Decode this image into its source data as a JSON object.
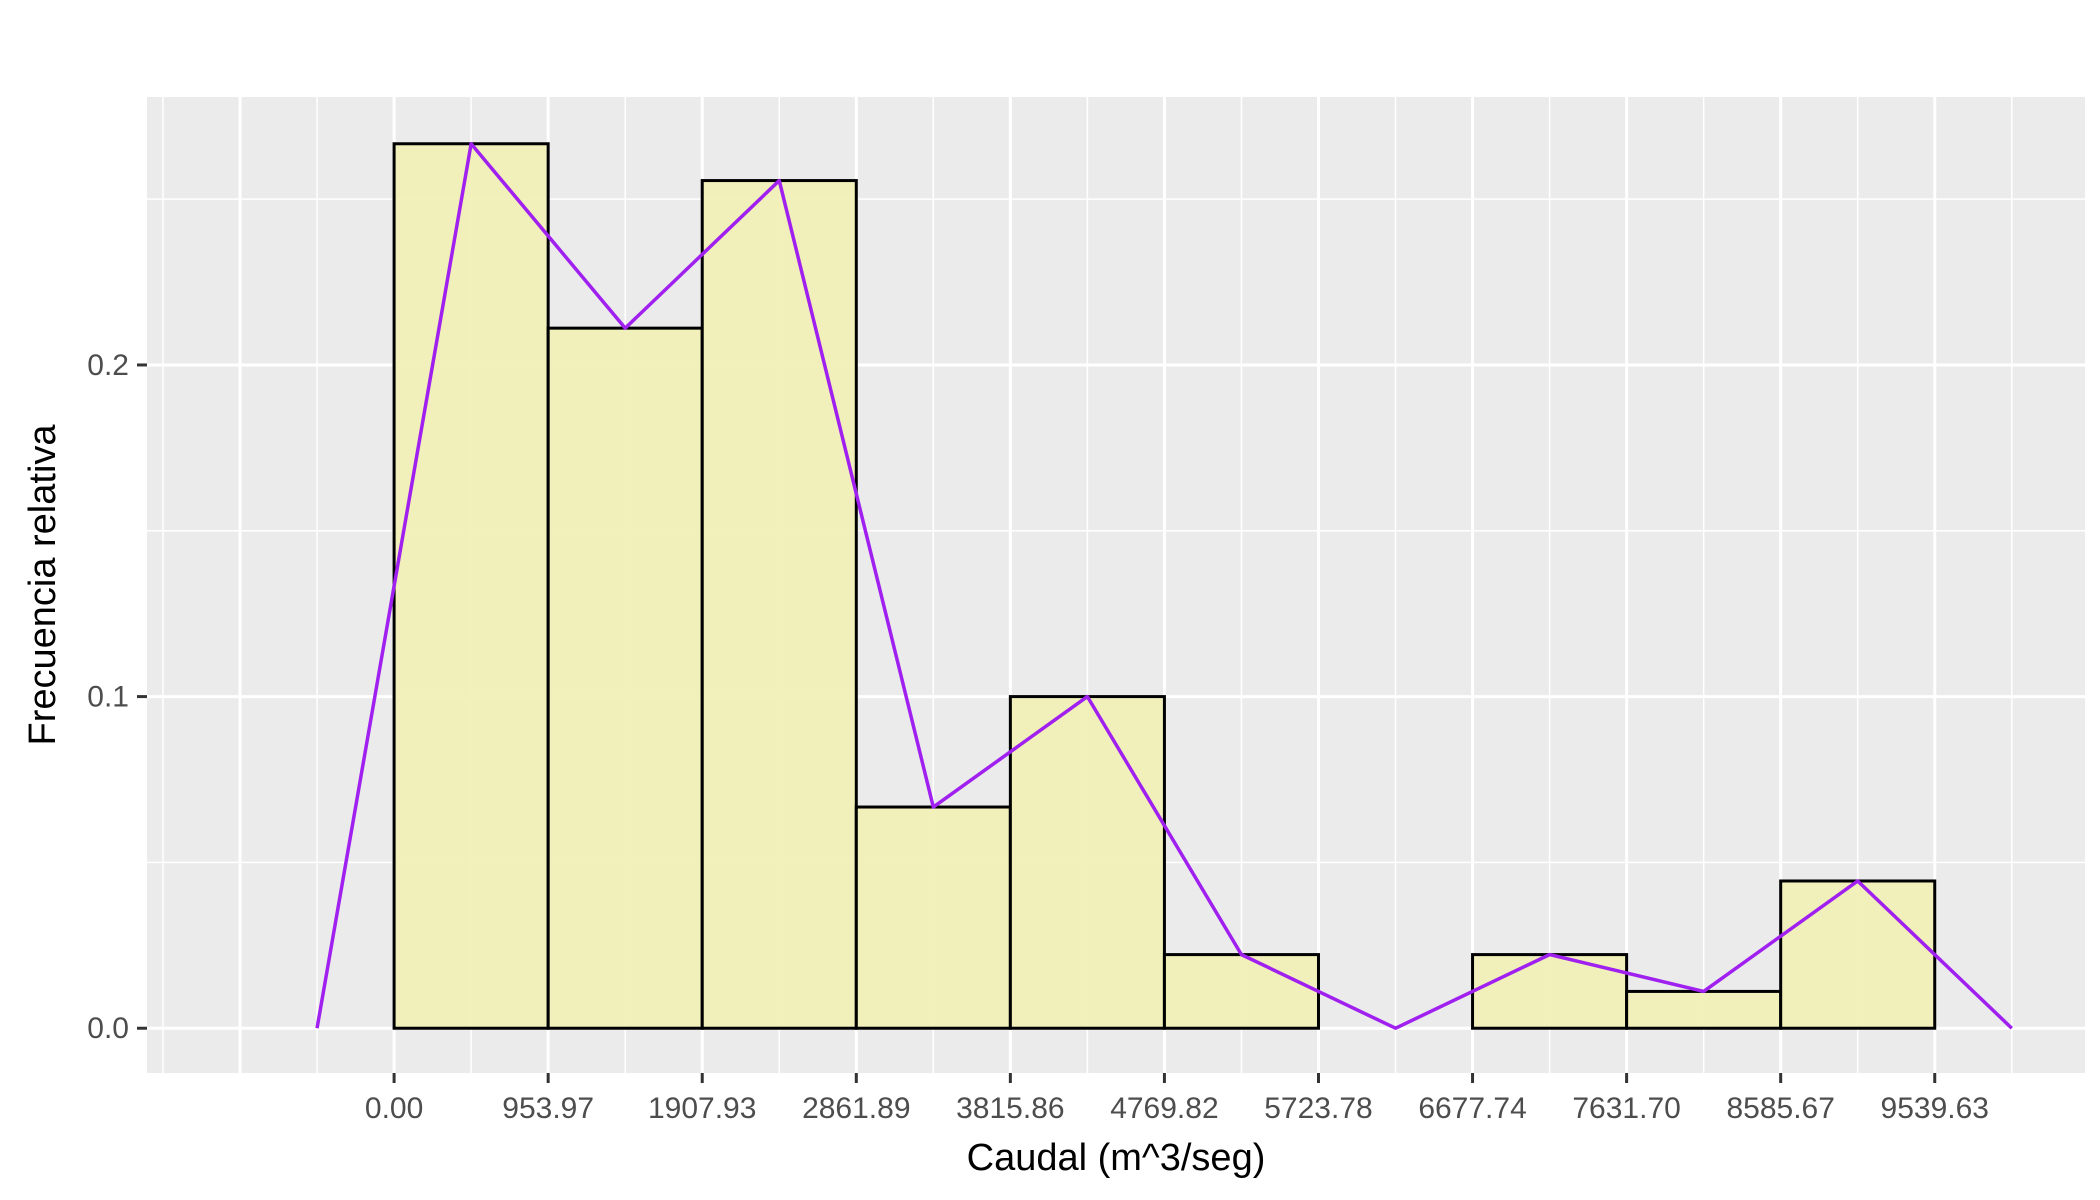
{
  "chart_data": {
    "type": "bar",
    "subtype": "histogram-with-frequency-polygon",
    "xlabel": "Caudal (m^3/seg)",
    "ylabel": "Frecuencia relativa",
    "x_ticks": [
      "0.00",
      "953.97",
      "1907.93",
      "2861.89",
      "3815.86",
      "4769.82",
      "5723.78",
      "6677.74",
      "7631.70",
      "8585.67",
      "9539.63"
    ],
    "x_tick_values": [
      0,
      953.97,
      1907.93,
      2861.89,
      3815.86,
      4769.82,
      5723.78,
      6677.74,
      7631.7,
      8585.67,
      9539.63
    ],
    "y_ticks": [
      "0.0",
      "0.1",
      "0.2"
    ],
    "y_tick_values": [
      0.0,
      0.1,
      0.2
    ],
    "xlim": [
      -1530,
      10470
    ],
    "ylim": [
      -0.0135,
      0.2808
    ],
    "bins": [
      {
        "start": 0,
        "end": 953.97,
        "value": 0.2667
      },
      {
        "start": 953.97,
        "end": 1907.93,
        "value": 0.2111
      },
      {
        "start": 1907.93,
        "end": 2861.89,
        "value": 0.2556
      },
      {
        "start": 2861.89,
        "end": 3815.86,
        "value": 0.0667
      },
      {
        "start": 3815.86,
        "end": 4769.82,
        "value": 0.1
      },
      {
        "start": 4769.82,
        "end": 5723.78,
        "value": 0.0222
      },
      {
        "start": 5723.78,
        "end": 6677.74,
        "value": 0.0
      },
      {
        "start": 6677.74,
        "end": 7631.7,
        "value": 0.0222
      },
      {
        "start": 7631.7,
        "end": 8585.67,
        "value": 0.0111
      },
      {
        "start": 8585.67,
        "end": 9539.63,
        "value": 0.0444
      }
    ],
    "polygon": {
      "x": [
        -476.98,
        476.98,
        1430.95,
        2384.91,
        3338.88,
        4292.84,
        5246.8,
        6200.76,
        7154.72,
        8108.69,
        9062.65,
        10016.61
      ],
      "y": [
        0.0,
        0.2667,
        0.2111,
        0.2556,
        0.0667,
        0.1,
        0.0222,
        0.0,
        0.0222,
        0.0111,
        0.0444,
        0.0
      ]
    },
    "colors": {
      "panel_background": "#ebebeb",
      "grid_major": "#ffffff",
      "bar_fill": "#f2f0b7",
      "bar_stroke": "#000000",
      "polygon_line": "#a020f0",
      "tick_text": "#4d4d4d",
      "tick_mark": "#333333"
    },
    "grid": true,
    "legend": "none"
  }
}
